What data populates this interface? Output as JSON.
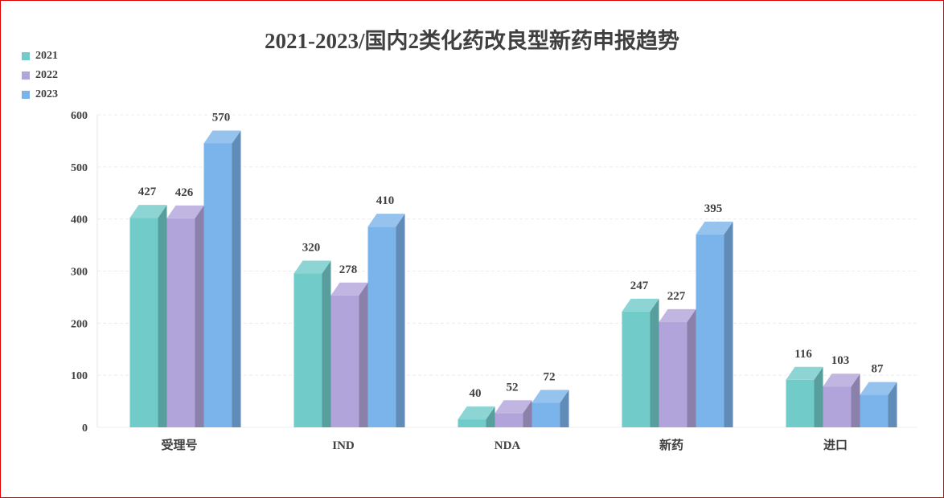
{
  "chart_data": {
    "type": "bar",
    "title": "2021-2023/国内2类化药改良型新药申报趋势",
    "categories": [
      "受理号",
      "IND",
      "NDA",
      "新药",
      "进口"
    ],
    "series": [
      {
        "name": "2021",
        "values": [
          427,
          320,
          40,
          247,
          116
        ],
        "color": "#70CBC9"
      },
      {
        "name": "2022",
        "values": [
          426,
          278,
          52,
          227,
          103
        ],
        "color": "#B1A4DA"
      },
      {
        "name": "2023",
        "values": [
          570,
          410,
          72,
          395,
          87
        ],
        "color": "#7BB4EA"
      }
    ],
    "ylim": [
      0,
      600
    ],
    "yticks": [
      0,
      100,
      200,
      300,
      400,
      500,
      600
    ],
    "grid": true,
    "legend": "top-left",
    "style": "3d-column"
  }
}
